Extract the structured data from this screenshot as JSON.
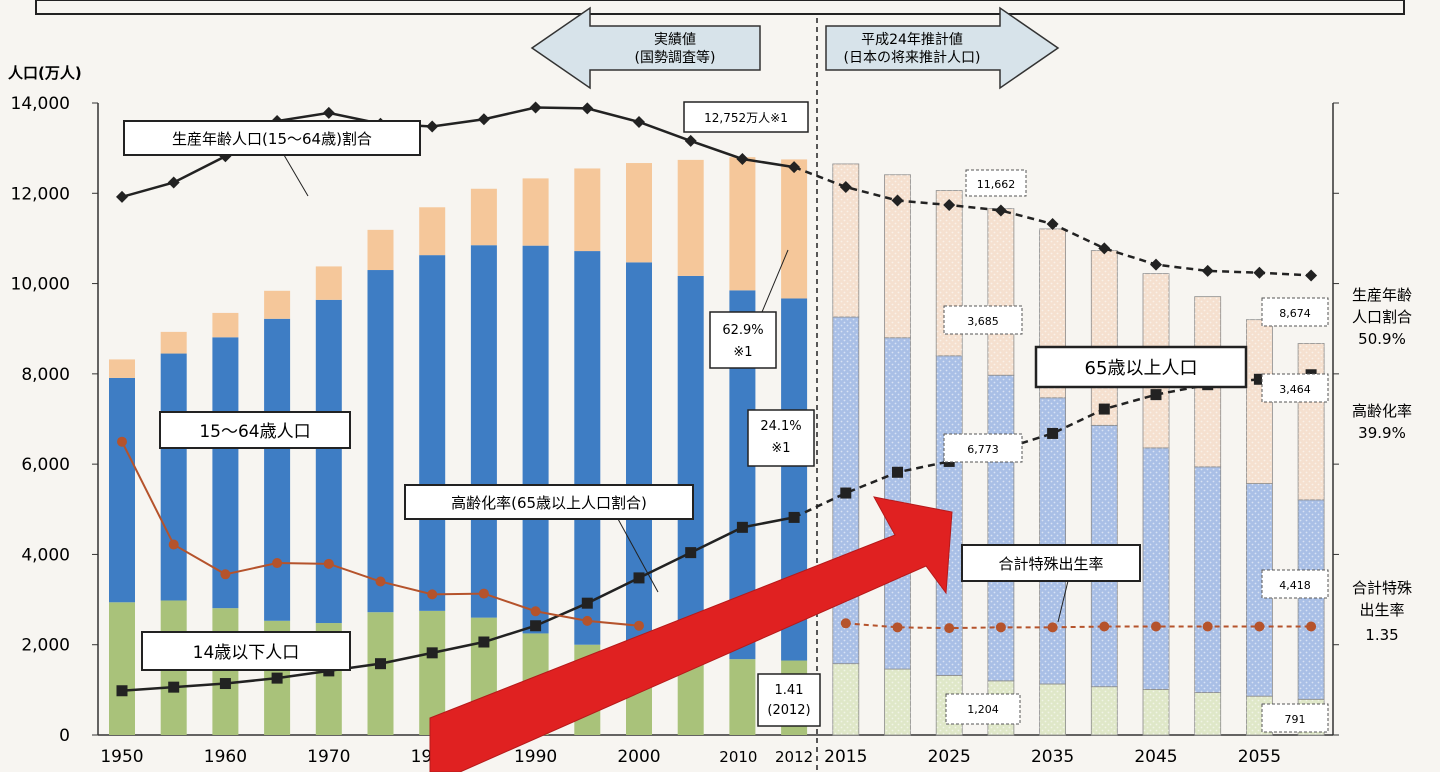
{
  "chart_data": {
    "type": "bar",
    "y_axis_title": "人口(万人)",
    "y_ticks": [
      0,
      2000,
      4000,
      6000,
      8000,
      10000,
      12000,
      14000
    ],
    "y_tick_labels": [
      "0",
      "2,000",
      "4,000",
      "6,000",
      "8,000",
      "10,000",
      "12,000",
      "14,000"
    ],
    "ylim": [
      0,
      14000
    ],
    "x_tick_labels": [
      "1950",
      "1960",
      "1970",
      "1980",
      "1990",
      "2000",
      "2010",
      "2012",
      "2015",
      "2025",
      "2035",
      "2045",
      "2055"
    ],
    "categories": [
      "1950",
      "1955",
      "1960",
      "1965",
      "1970",
      "1975",
      "1980",
      "1985",
      "1990",
      "1995",
      "2000",
      "2005",
      "2010",
      "2012",
      "2015",
      "2020",
      "2025",
      "2030",
      "2035",
      "2040",
      "2045",
      "2050",
      "2055",
      "2060"
    ],
    "series": [
      {
        "name": "14歳以下人口",
        "color": "#a9c27a",
        "values": [
          2940,
          2980,
          2810,
          2530,
          2480,
          2720,
          2750,
          2600,
          2250,
          2000,
          1850,
          1760,
          1680,
          1650,
          1580,
          1460,
          1320,
          1200,
          1130,
          1070,
          1010,
          940,
          860,
          791
        ]
      },
      {
        "name": "15〜64歳人口",
        "color": "#3e7dc4",
        "values": [
          4970,
          5470,
          6000,
          6690,
          7160,
          7580,
          7880,
          8250,
          8590,
          8720,
          8620,
          8410,
          8170,
          8020,
          7680,
          7340,
          7080,
          6770,
          6340,
          5790,
          5350,
          5000,
          4710,
          4418
        ]
      },
      {
        "name": "65歳以上人口",
        "color": "#f5c79a",
        "values": [
          410,
          480,
          540,
          620,
          740,
          890,
          1060,
          1250,
          1490,
          1830,
          2200,
          2570,
          2950,
          3080,
          3390,
          3610,
          3660,
          3690,
          3740,
          3870,
          3860,
          3770,
          3630,
          3464
        ]
      }
    ],
    "projected_from_index": 14,
    "lines": [
      {
        "name": "生産年齢人口(15〜64歳)割合",
        "values": [
          59.6,
          61.2,
          64.1,
          68.0,
          68.9,
          67.7,
          67.4,
          68.2,
          69.5,
          69.4,
          67.9,
          65.8,
          63.8,
          62.9,
          60.7,
          59.2,
          58.7,
          58.1,
          56.6,
          53.9,
          52.1,
          51.4,
          51.2,
          50.9
        ]
      },
      {
        "name": "高齢化率(65歳以上人口割合)",
        "values": [
          4.9,
          5.3,
          5.7,
          6.3,
          7.1,
          7.9,
          9.1,
          10.3,
          12.1,
          14.6,
          17.4,
          20.2,
          23.0,
          24.1,
          26.8,
          29.1,
          30.3,
          31.6,
          33.4,
          36.1,
          37.7,
          38.8,
          39.4,
          39.9
        ]
      },
      {
        "name": "合計特殊出生率",
        "values": [
          3.65,
          2.37,
          2.0,
          2.14,
          2.13,
          1.91,
          1.75,
          1.76,
          1.54,
          1.42,
          1.36,
          null,
          null,
          null,
          1.39,
          1.34,
          1.33,
          1.34,
          1.34,
          1.35,
          1.35,
          1.35,
          1.35,
          1.35
        ]
      }
    ]
  },
  "texts": {
    "banner_actual": [
      "実績値",
      "(国勢調査等)"
    ],
    "banner_projection": [
      "平成24年推計値",
      "(日本の将来推計人口)"
    ],
    "label_working_ratio": "生産年齢人口(15〜64歳)割合",
    "label_working_pop": "15〜64歳人口",
    "label_elderly_pop": "65歳以上人口",
    "label_aging_rate": "高齢化率(65歳以上人口割合)",
    "label_child_pop": "14歳以下人口",
    "label_fertility": "合計特殊出生率",
    "callout_total_2012": "12,752万人※1",
    "callout_6292": [
      "62.9%",
      "※1"
    ],
    "callout_241": [
      "24.1%",
      "※1"
    ],
    "callout_fert_2012": [
      "1.41",
      "(2012)"
    ],
    "val_11662": "11,662",
    "val_3685": "3,685",
    "val_6773": "6,773",
    "val_1204": "1,204",
    "val_8674": "8,674",
    "val_3464": "3,464",
    "val_4418": "4,418",
    "val_791": "791",
    "right_working": [
      "生産年齢",
      "人口割合",
      "50.9%"
    ],
    "right_aging": [
      "高齢化率",
      "39.9%"
    ],
    "right_fertility": [
      "合計特殊",
      "出生率",
      "1.35"
    ]
  }
}
